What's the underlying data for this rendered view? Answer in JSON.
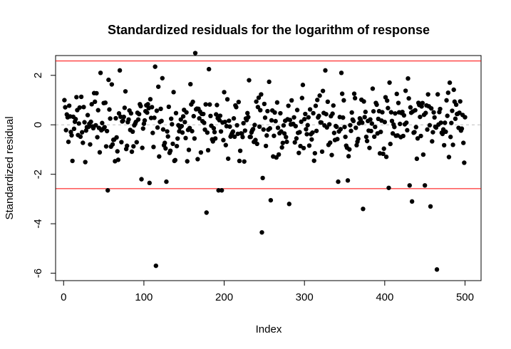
{
  "chart_data": {
    "type": "scatter",
    "title": "Standardized residuals for the logarithm of response",
    "xlabel": "Index",
    "ylabel": "Standardized residual",
    "xlim": [
      -10,
      520
    ],
    "ylim": [
      -6.3,
      2.8
    ],
    "xticks": [
      0,
      100,
      200,
      300,
      400,
      500
    ],
    "yticks": [
      -6,
      -4,
      -2,
      0,
      2
    ],
    "grid": false,
    "reference_lines": [
      {
        "y": 2.58,
        "color": "#ff0000",
        "style": "solid"
      },
      {
        "y": -2.58,
        "color": "#ff0000",
        "style": "solid"
      },
      {
        "y": 0,
        "color": "#bebebe",
        "style": "dashed"
      }
    ],
    "point_color": "#000000",
    "n_points": 500,
    "notable_points": [
      {
        "x": 164,
        "y": 2.9
      },
      {
        "x": 114,
        "y": 2.35
      },
      {
        "x": 181,
        "y": 2.25
      },
      {
        "x": 70,
        "y": 2.2
      },
      {
        "x": 46,
        "y": 2.1
      },
      {
        "x": 326,
        "y": 2.2
      },
      {
        "x": 346,
        "y": 2.1
      },
      {
        "x": 115,
        "y": -5.7
      },
      {
        "x": 465,
        "y": -5.85
      },
      {
        "x": 247,
        "y": -4.35
      },
      {
        "x": 178,
        "y": -3.55
      },
      {
        "x": 373,
        "y": -3.4
      },
      {
        "x": 457,
        "y": -3.3
      },
      {
        "x": 281,
        "y": -3.2
      },
      {
        "x": 434,
        "y": -3.1
      },
      {
        "x": 258,
        "y": -3.05
      },
      {
        "x": 55,
        "y": -2.65
      },
      {
        "x": 193,
        "y": -2.65
      },
      {
        "x": 197,
        "y": -2.65
      },
      {
        "x": 405,
        "y": -2.55
      },
      {
        "x": 431,
        "y": -2.45
      },
      {
        "x": 450,
        "y": -2.45
      },
      {
        "x": 107,
        "y": -2.35
      },
      {
        "x": 128,
        "y": -2.3
      },
      {
        "x": 354,
        "y": -2.25
      },
      {
        "x": 342,
        "y": -2.3
      },
      {
        "x": 248,
        "y": -2.15
      },
      {
        "x": 97,
        "y": -2.2
      }
    ],
    "bulk_range": [
      -1.6,
      1.9
    ]
  }
}
